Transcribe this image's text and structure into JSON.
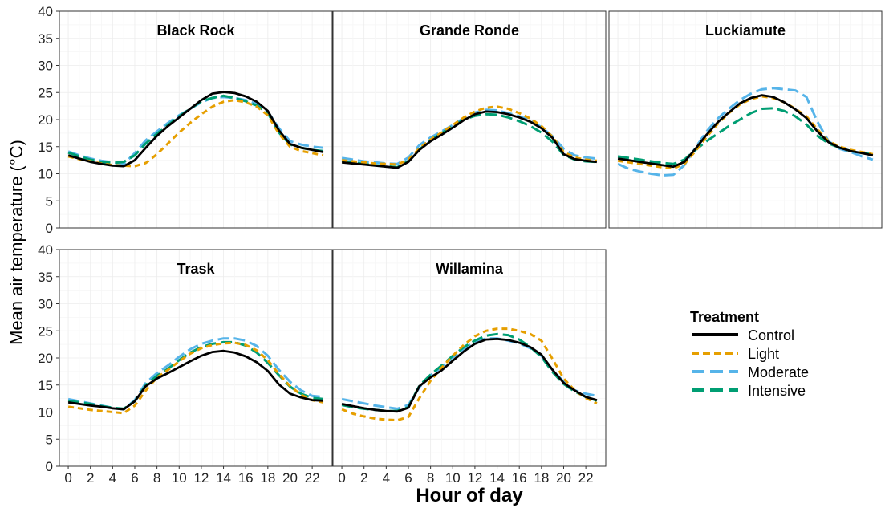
{
  "figure": {
    "ylabel": "Mean air temperature (°C)",
    "xlabel": "Hour of day",
    "legend": {
      "title": "Treatment",
      "placement": "right, beside bottom row",
      "items": [
        "Control",
        "Light",
        "Moderate",
        "Intensive"
      ]
    }
  },
  "chart_data": {
    "type": "line",
    "layout": "faceted 2 rows x 3 columns (5 panels)",
    "xlim": [
      -0.8,
      23.8
    ],
    "ylim": [
      0,
      40
    ],
    "x_ticks": [
      0,
      2,
      4,
      6,
      8,
      10,
      12,
      14,
      16,
      18,
      20,
      22
    ],
    "y_ticks": [
      0,
      5,
      10,
      15,
      20,
      25,
      30,
      35,
      40
    ],
    "grid": true,
    "x": [
      0,
      1,
      2,
      3,
      4,
      5,
      6,
      7,
      8,
      9,
      10,
      11,
      12,
      13,
      14,
      15,
      16,
      17,
      18,
      19,
      20,
      21,
      22,
      23
    ],
    "series_styles": [
      {
        "name": "Control",
        "color": "#000000",
        "dash": "solid"
      },
      {
        "name": "Light",
        "color": "#E69F00",
        "dash": "short-dash"
      },
      {
        "name": "Moderate",
        "color": "#56B4E9",
        "dash": "long-dash"
      },
      {
        "name": "Intensive",
        "color": "#009E73",
        "dash": "long-dash"
      }
    ],
    "panels": [
      {
        "title": "Black Rock",
        "series": [
          {
            "name": "Control",
            "values": [
              13.4,
              12.8,
              12.2,
              11.8,
              11.5,
              11.4,
              12.5,
              14.8,
              17.0,
              18.8,
              20.4,
              22.0,
              23.6,
              24.8,
              25.1,
              24.9,
              24.3,
              23.3,
              21.6,
              18.0,
              15.5,
              14.8,
              14.4,
              14.0
            ]
          },
          {
            "name": "Light",
            "values": [
              13.2,
              12.7,
              12.3,
              11.9,
              11.6,
              11.5,
              11.4,
              12.0,
              13.6,
              15.6,
              17.6,
              19.4,
              21.0,
              22.4,
              23.3,
              23.6,
              23.2,
              22.4,
              20.8,
              17.4,
              15.0,
              14.2,
              13.8,
              13.4
            ]
          },
          {
            "name": "Moderate",
            "values": [
              14.1,
              13.4,
              12.8,
              12.4,
              12.1,
              11.8,
              13.8,
              16.2,
              17.8,
              19.4,
              20.8,
              22.0,
              23.2,
              24.0,
              24.2,
              24.0,
              23.6,
              22.9,
              21.5,
              18.4,
              16.0,
              15.4,
              15.0,
              14.8
            ]
          },
          {
            "name": "Intensive",
            "values": [
              13.9,
              13.2,
              12.6,
              12.2,
              12.0,
              12.2,
              13.4,
              15.6,
              17.4,
              19.0,
              20.6,
              22.0,
              23.4,
              24.0,
              24.4,
              24.0,
              23.4,
              22.6,
              21.2,
              17.6,
              15.4,
              14.8,
              14.4,
              14.2
            ]
          }
        ]
      },
      {
        "title": "Grande Ronde",
        "series": [
          {
            "name": "Control",
            "values": [
              12.1,
              11.9,
              11.7,
              11.5,
              11.3,
              11.1,
              12.2,
              14.4,
              16.0,
              17.2,
              18.5,
              19.9,
              21.0,
              21.5,
              21.4,
              21.0,
              20.4,
              19.6,
              18.4,
              16.6,
              13.6,
              12.7,
              12.4,
              12.2
            ]
          },
          {
            "name": "Light",
            "values": [
              12.5,
              12.3,
              12.1,
              11.9,
              11.8,
              11.7,
              12.6,
              14.7,
              16.3,
              17.6,
              19.0,
              20.4,
              21.5,
              22.2,
              22.4,
              22.0,
              21.2,
              20.2,
              18.8,
              16.8,
              14.0,
              13.0,
              12.6,
              12.4
            ]
          },
          {
            "name": "Moderate",
            "values": [
              12.9,
              12.6,
              12.3,
              12.1,
              11.9,
              11.8,
              13.0,
              15.3,
              16.7,
              17.8,
              19.0,
              20.3,
              21.3,
              21.8,
              21.7,
              21.2,
              20.6,
              19.8,
              18.6,
              16.9,
              14.6,
              13.4,
              13.0,
              12.8
            ]
          },
          {
            "name": "Intensive",
            "values": [
              12.4,
              12.1,
              11.8,
              11.6,
              11.4,
              11.2,
              12.4,
              14.5,
              16.2,
              17.5,
              18.8,
              20.0,
              20.7,
              21.0,
              20.9,
              20.4,
              19.7,
              18.8,
              17.6,
              15.9,
              13.5,
              12.6,
              12.3,
              12.2
            ]
          }
        ]
      },
      {
        "title": "Luckiamute",
        "series": [
          {
            "name": "Control",
            "values": [
              12.8,
              12.5,
              12.2,
              11.9,
              11.6,
              11.3,
              12.2,
              14.6,
              17.2,
              19.5,
              21.3,
              23.0,
              24.0,
              24.5,
              24.2,
              23.2,
              21.9,
              20.3,
              17.8,
              15.8,
              14.8,
              14.2,
              13.8,
              13.4
            ]
          },
          {
            "name": "Light",
            "values": [
              12.4,
              12.1,
              11.8,
              11.5,
              11.2,
              11.0,
              11.8,
              14.2,
              16.8,
              19.2,
              21.2,
              22.8,
              23.8,
              24.3,
              24.0,
              23.2,
              22.0,
              20.6,
              18.2,
              16.0,
              15.0,
              14.4,
              14.0,
              13.6
            ]
          },
          {
            "name": "Moderate",
            "values": [
              11.8,
              10.9,
              10.4,
              10.0,
              9.7,
              9.8,
              11.6,
              14.8,
              17.8,
              20.2,
              22.0,
              23.6,
              24.8,
              25.6,
              25.8,
              25.6,
              25.4,
              24.2,
              19.6,
              16.0,
              14.6,
              14.0,
              13.2,
              12.6
            ]
          },
          {
            "name": "Intensive",
            "values": [
              13.2,
              12.9,
              12.6,
              12.3,
              12.0,
              11.8,
              12.6,
              14.4,
              16.0,
              17.4,
              18.8,
              20.0,
              21.2,
              22.0,
              22.1,
              21.6,
              20.6,
              19.1,
              17.0,
              15.6,
              14.8,
              14.2,
              13.8,
              13.6
            ]
          }
        ]
      },
      {
        "title": "Trask",
        "series": [
          {
            "name": "Control",
            "values": [
              11.8,
              11.5,
              11.2,
              11.0,
              10.7,
              10.5,
              12.0,
              14.8,
              16.2,
              17.2,
              18.3,
              19.4,
              20.4,
              21.1,
              21.3,
              21.0,
              20.3,
              19.2,
              17.6,
              15.1,
              13.4,
              12.7,
              12.2,
              12.1
            ]
          },
          {
            "name": "Light",
            "values": [
              11.0,
              10.7,
              10.4,
              10.2,
              10.0,
              9.8,
              11.2,
              14.0,
              16.4,
              17.8,
              19.4,
              20.8,
              21.8,
              22.4,
              22.7,
              22.8,
              22.4,
              21.4,
              19.6,
              17.0,
              14.8,
              13.2,
              12.2,
              11.8
            ]
          },
          {
            "name": "Moderate",
            "values": [
              12.4,
              12.0,
              11.6,
              11.2,
              10.8,
              10.5,
              12.2,
              15.4,
              17.2,
              18.6,
              20.2,
              21.6,
              22.6,
              23.2,
              23.6,
              23.6,
              23.2,
              22.2,
              20.4,
              17.8,
              15.6,
              14.0,
              13.0,
              12.8
            ]
          },
          {
            "name": "Intensive",
            "values": [
              12.1,
              11.8,
              11.5,
              11.1,
              10.8,
              10.6,
              12.0,
              15.0,
              16.7,
              18.0,
              19.6,
              21.0,
              22.0,
              22.6,
              22.9,
              22.9,
              22.3,
              21.0,
              19.1,
              16.8,
              14.7,
              13.4,
              12.6,
              12.4
            ]
          }
        ]
      },
      {
        "title": "Willamina",
        "series": [
          {
            "name": "Control",
            "values": [
              11.5,
              11.1,
              10.7,
              10.4,
              10.2,
              10.1,
              10.8,
              14.8,
              16.4,
              17.7,
              19.5,
              21.2,
              22.6,
              23.4,
              23.5,
              23.3,
              22.8,
              22.0,
              20.6,
              17.8,
              15.4,
              14.0,
              12.8,
              12.2
            ]
          },
          {
            "name": "Light",
            "values": [
              10.5,
              9.7,
              9.2,
              8.8,
              8.6,
              8.5,
              9.1,
              12.6,
              15.8,
              18.2,
              20.4,
              22.4,
              24.0,
              25.0,
              25.4,
              25.4,
              25.0,
              24.4,
              23.2,
              19.8,
              16.2,
              14.0,
              12.6,
              11.6
            ]
          },
          {
            "name": "Moderate",
            "values": [
              12.4,
              12.0,
              11.6,
              11.2,
              10.9,
              10.6,
              11.3,
              14.6,
              16.8,
              18.3,
              20.1,
              21.7,
              22.9,
              23.6,
              23.6,
              23.2,
              22.7,
              21.8,
              20.4,
              17.8,
              15.6,
              14.0,
              13.4,
              13.0
            ]
          },
          {
            "name": "Intensive",
            "values": [
              11.3,
              10.9,
              10.6,
              10.4,
              10.2,
              10.2,
              10.9,
              14.9,
              16.9,
              18.6,
              20.4,
              22.0,
              23.2,
              24.1,
              24.4,
              24.2,
              23.4,
              22.0,
              20.2,
              17.4,
              15.2,
              13.8,
              12.8,
              12.1
            ]
          }
        ]
      }
    ]
  }
}
